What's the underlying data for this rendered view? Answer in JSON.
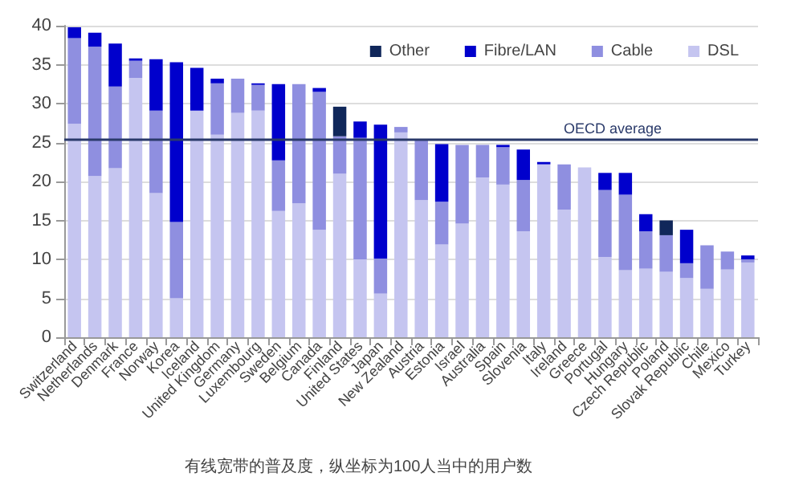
{
  "chart_data": {
    "type": "bar",
    "stacked": true,
    "categories": [
      "Switzerland",
      "Netherlands",
      "Denmark",
      "France",
      "Norway",
      "Korea",
      "Iceland",
      "United Kingdom",
      "Germany",
      "Luxembourg",
      "Sweden",
      "Belgium",
      "Canada",
      "Finland",
      "United States",
      "Japan",
      "New Zealand",
      "Austria",
      "Estonia",
      "Israel",
      "Australia",
      "Spain",
      "Slovenia",
      "Italy",
      "Ireland",
      "Greece",
      "Portugal",
      "Hungary",
      "Czech Republic",
      "Poland",
      "Slovak Republic",
      "Chile",
      "Mexico",
      "Turkey"
    ],
    "series": [
      {
        "name": "DSL",
        "color": "#c5c5f0",
        "values": [
          27.4,
          20.7,
          21.7,
          33.3,
          18.5,
          5.0,
          29.1,
          26.0,
          28.8,
          29.1,
          16.2,
          17.2,
          13.8,
          21.0,
          10.0,
          5.6,
          26.3,
          17.6,
          11.9,
          14.6,
          20.5,
          19.6,
          13.6,
          22.2,
          16.4,
          21.8,
          10.3,
          8.6,
          8.8,
          8.4,
          7.6,
          6.2,
          8.7,
          9.6
        ]
      },
      {
        "name": "Cable",
        "color": "#8f8fe0",
        "values": [
          11.0,
          16.6,
          10.5,
          2.2,
          10.6,
          9.8,
          0,
          6.6,
          4.4,
          3.3,
          6.5,
          15.3,
          17.7,
          4.8,
          15.6,
          4.5,
          0.7,
          7.7,
          5.5,
          10.1,
          4.2,
          4.8,
          6.6,
          0,
          5.8,
          0,
          8.6,
          9.7,
          4.8,
          4.7,
          1.9,
          5.6,
          2.3,
          0.4
        ]
      },
      {
        "name": "Fibre/LAN",
        "color": "#0000cc",
        "values": [
          1.4,
          1.8,
          5.5,
          0.3,
          6.6,
          20.5,
          5.5,
          0.6,
          0,
          0.2,
          9.8,
          0,
          0.5,
          0,
          2.1,
          17.2,
          0,
          null,
          7.4,
          0,
          0,
          0.3,
          3.9,
          0.3,
          0,
          0,
          2.2,
          2.8,
          2.2,
          0,
          4.3,
          0,
          0,
          0.5
        ]
      },
      {
        "name": "Other",
        "color": "#10275a",
        "values": [
          0,
          0,
          0,
          0,
          0,
          0,
          0,
          0,
          0,
          0,
          0,
          0,
          0,
          3.8,
          0,
          0,
          0,
          0,
          0,
          0,
          0,
          0,
          0,
          0,
          0,
          0,
          0,
          0,
          0,
          1.9,
          0,
          0,
          0,
          0
        ]
      }
    ],
    "ylim": [
      0,
      40
    ],
    "yticks": [
      0,
      5,
      10,
      15,
      20,
      25,
      30,
      35,
      40
    ],
    "grid": "y",
    "legend": "top right",
    "ref_lines": [
      {
        "axis": "y",
        "value": 25.5,
        "label": "OECD average",
        "color": "#2a3a6a"
      }
    ],
    "annotations": [
      "有线宽带的普及度，纵坐标为100人当中的用户数"
    ]
  }
}
